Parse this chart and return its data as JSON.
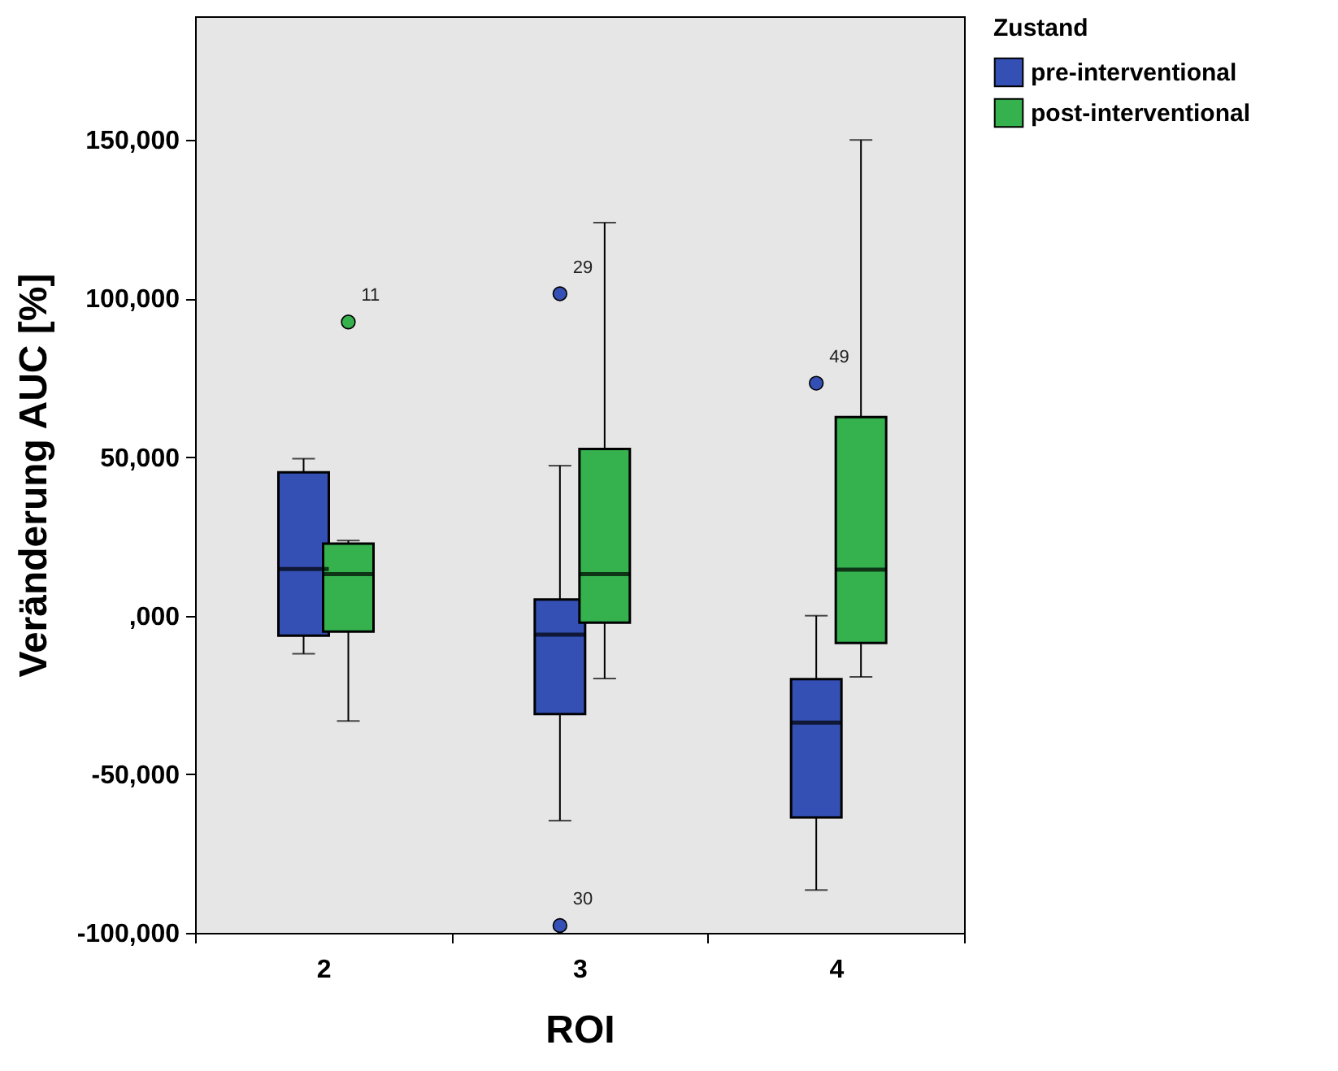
{
  "chart_data": {
    "type": "box",
    "xlabel": "ROI",
    "ylabel": "Veränderung AUC [%]",
    "legend_title": "Zustand",
    "legend": "top right",
    "grid": false,
    "categories": [
      "2",
      "3",
      "4"
    ],
    "ylim": [
      -100000,
      189000
    ],
    "yticks": [
      {
        "value": -100000,
        "label": "-100,000"
      },
      {
        "value": -50000,
        "label": "-50,000"
      },
      {
        "value": 0,
        "label": ",000"
      },
      {
        "value": 50000,
        "label": "50,000"
      },
      {
        "value": 100000,
        "label": "100,000"
      },
      {
        "value": 150000,
        "label": "150,000"
      }
    ],
    "series": [
      {
        "name": "pre-interventional",
        "color": "#3450b4",
        "boxes": [
          {
            "low": -12000,
            "q1": -6300,
            "median": 14700,
            "q3": 45200,
            "high": 49500
          },
          {
            "low": -64600,
            "q1": -31000,
            "median": -6000,
            "q3": 5100,
            "high": 47300,
            "outliers": [
              101500,
              -97700
            ]
          },
          {
            "low": -86500,
            "q1": -63600,
            "median": -33700,
            "q3": -20000,
            "high": 0,
            "outliers": [
              73300
            ]
          }
        ]
      },
      {
        "name": "post-interventional",
        "color": "#35b24e",
        "boxes": [
          {
            "low": -33200,
            "q1": -5000,
            "median": 13100,
            "q3": 22700,
            "high": 23700,
            "outliers": [
              92600
            ]
          },
          {
            "low": -19800,
            "q1": -2200,
            "median": 13100,
            "q3": 52600,
            "high": 123900
          },
          {
            "low": -19300,
            "q1": -8600,
            "median": 14500,
            "q3": 62600,
            "high": 150000
          }
        ]
      }
    ],
    "annotations": [
      "11",
      "29",
      "30",
      "49"
    ]
  }
}
